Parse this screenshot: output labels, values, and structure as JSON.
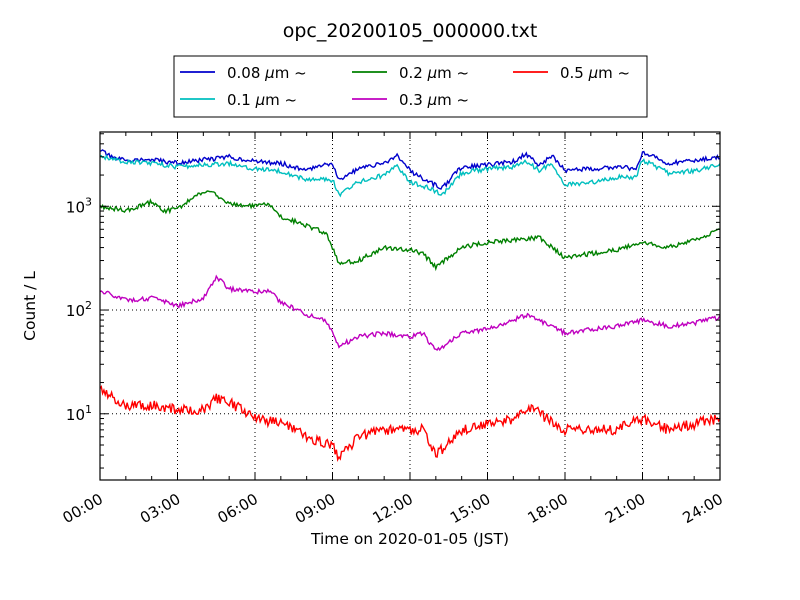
{
  "chart_data": {
    "type": "line",
    "title": "opc_20200105_000000.txt",
    "xlabel": "Time on 2020-01-05 (JST)",
    "ylabel": "Count / L",
    "yscale": "log",
    "ylim": [
      2.3,
      5200
    ],
    "xlim": [
      "00:00",
      "24:00"
    ],
    "x_tick_labels": [
      "00:00",
      "03:00",
      "06:00",
      "09:00",
      "12:00",
      "15:00",
      "18:00",
      "21:00",
      "24:00"
    ],
    "y_tick_labels": [
      {
        "base": "10",
        "exp": "1",
        "value": 10
      },
      {
        "base": "10",
        "exp": "2",
        "value": 100
      },
      {
        "base": "10",
        "exp": "3",
        "value": 1000
      }
    ],
    "grid": true,
    "legend_position": "top-center",
    "series": [
      {
        "name": "0.08",
        "unit": "μm",
        "suffix": "~",
        "color": "#0000cc",
        "x": [
          "00:00",
          "00:30",
          "01:00",
          "02:00",
          "03:00",
          "04:00",
          "05:00",
          "06:00",
          "07:00",
          "08:00",
          "08:30",
          "09:00",
          "09:15",
          "10:00",
          "11:00",
          "11:30",
          "12:00",
          "12:45",
          "13:15",
          "14:00",
          "15:00",
          "16:00",
          "16:30",
          "17:00",
          "17:30",
          "18:00",
          "19:00",
          "20:00",
          "20:45",
          "21:00",
          "22:00",
          "23:00",
          "24:00"
        ],
        "values": [
          3500,
          2900,
          2800,
          2800,
          2600,
          2800,
          3000,
          2700,
          2600,
          2200,
          2500,
          2600,
          1800,
          2300,
          2600,
          3100,
          2200,
          1700,
          1500,
          2400,
          2500,
          2700,
          3200,
          2500,
          3100,
          2200,
          2300,
          2400,
          2300,
          3300,
          2600,
          2800,
          3000
        ]
      },
      {
        "name": "0.1",
        "unit": "μm",
        "suffix": "~",
        "color": "#00bfbf",
        "x": [
          "00:00",
          "00:30",
          "01:00",
          "02:00",
          "03:00",
          "04:00",
          "05:00",
          "06:00",
          "07:00",
          "08:00",
          "08:30",
          "09:00",
          "09:15",
          "10:00",
          "11:00",
          "11:30",
          "12:00",
          "12:45",
          "13:15",
          "14:00",
          "15:00",
          "16:00",
          "16:30",
          "17:00",
          "17:30",
          "18:00",
          "19:00",
          "20:00",
          "20:45",
          "21:00",
          "22:00",
          "23:00",
          "24:00"
        ],
        "values": [
          3100,
          2800,
          2700,
          2600,
          2400,
          2500,
          2600,
          2300,
          2200,
          1800,
          1800,
          1800,
          1300,
          1700,
          2000,
          2500,
          1700,
          1500,
          1300,
          2100,
          2300,
          2400,
          2700,
          2200,
          2600,
          1600,
          1700,
          1900,
          1900,
          2800,
          2100,
          2200,
          2500
        ]
      },
      {
        "name": "0.2",
        "unit": "μm",
        "suffix": "~",
        "color": "#008000",
        "x": [
          "00:00",
          "00:30",
          "01:00",
          "02:00",
          "02:30",
          "03:00",
          "04:00",
          "04:30",
          "05:00",
          "06:00",
          "06:30",
          "07:00",
          "08:00",
          "08:45",
          "09:15",
          "10:00",
          "11:00",
          "12:00",
          "12:30",
          "13:00",
          "14:00",
          "15:00",
          "16:00",
          "17:00",
          "18:00",
          "19:00",
          "20:00",
          "21:00",
          "22:00",
          "23:00",
          "24:00"
        ],
        "values": [
          1000,
          950,
          900,
          1100,
          900,
          950,
          1400,
          1300,
          1050,
          1000,
          1050,
          800,
          650,
          550,
          280,
          300,
          400,
          380,
          350,
          260,
          400,
          450,
          470,
          500,
          320,
          350,
          380,
          450,
          400,
          480,
          580
        ]
      },
      {
        "name": "0.3",
        "unit": "μm",
        "suffix": "~",
        "color": "#bf00bf",
        "x": [
          "00:00",
          "00:30",
          "01:00",
          "02:00",
          "03:00",
          "04:00",
          "04:30",
          "05:00",
          "06:00",
          "06:30",
          "07:00",
          "08:00",
          "08:45",
          "09:15",
          "10:00",
          "11:00",
          "12:00",
          "12:30",
          "13:00",
          "14:00",
          "15:00",
          "16:00",
          "16:30",
          "17:00",
          "18:00",
          "19:00",
          "20:00",
          "21:00",
          "22:00",
          "23:00",
          "24:00"
        ],
        "values": [
          150,
          140,
          125,
          130,
          110,
          130,
          210,
          160,
          150,
          155,
          120,
          90,
          80,
          45,
          55,
          60,
          55,
          60,
          40,
          60,
          65,
          80,
          90,
          80,
          60,
          65,
          70,
          80,
          70,
          75,
          85
        ]
      },
      {
        "name": "0.5",
        "unit": "μm",
        "suffix": "~",
        "color": "#ff0000",
        "x": [
          "00:00",
          "00:30",
          "01:00",
          "02:00",
          "03:00",
          "04:00",
          "04:30",
          "05:00",
          "06:00",
          "07:00",
          "08:00",
          "09:00",
          "09:15",
          "10:00",
          "11:00",
          "12:00",
          "12:30",
          "13:00",
          "14:00",
          "15:00",
          "16:00",
          "16:45",
          "17:00",
          "18:00",
          "19:00",
          "20:00",
          "21:00",
          "22:00",
          "23:00",
          "24:00"
        ],
        "values": [
          18,
          14,
          12,
          12,
          11,
          11,
          14,
          13,
          9,
          8,
          6,
          5,
          3.7,
          6,
          7,
          7,
          7,
          4,
          7,
          8,
          9,
          12,
          10,
          7,
          7,
          7,
          9,
          7,
          8,
          9
        ]
      }
    ]
  }
}
